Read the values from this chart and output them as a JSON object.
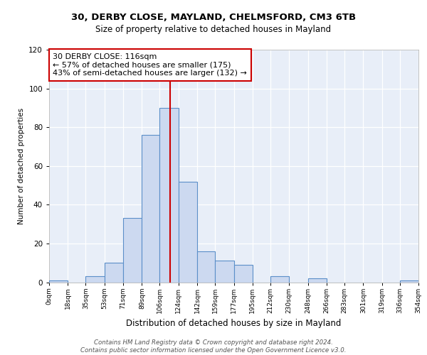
{
  "title1": "30, DERBY CLOSE, MAYLAND, CHELMSFORD, CM3 6TB",
  "title2": "Size of property relative to detached houses in Mayland",
  "xlabel": "Distribution of detached houses by size in Mayland",
  "ylabel": "Number of detached properties",
  "bin_labels": [
    "0sqm",
    "18sqm",
    "35sqm",
    "53sqm",
    "71sqm",
    "89sqm",
    "106sqm",
    "124sqm",
    "142sqm",
    "159sqm",
    "177sqm",
    "195sqm",
    "212sqm",
    "230sqm",
    "248sqm",
    "266sqm",
    "283sqm",
    "301sqm",
    "319sqm",
    "336sqm",
    "354sqm"
  ],
  "bar_heights": [
    1,
    0,
    3,
    10,
    33,
    76,
    90,
    52,
    16,
    11,
    9,
    0,
    3,
    0,
    2,
    0,
    0,
    0,
    0,
    1
  ],
  "bar_color": "#ccd9f0",
  "bar_edge_color": "#5b8fc9",
  "vline_x": 116,
  "vline_color": "#cc0000",
  "annotation_line1": "30 DERBY CLOSE: 116sqm",
  "annotation_line2": "← 57% of detached houses are smaller (175)",
  "annotation_line3": "43% of semi-detached houses are larger (132) →",
  "ylim": [
    0,
    120
  ],
  "yticks": [
    0,
    20,
    40,
    60,
    80,
    100,
    120
  ],
  "footnote": "Contains HM Land Registry data © Crown copyright and database right 2024.\nContains public sector information licensed under the Open Government Licence v3.0.",
  "bin_edges": [
    0,
    18,
    35,
    53,
    71,
    89,
    106,
    124,
    142,
    159,
    177,
    195,
    212,
    230,
    248,
    266,
    283,
    301,
    319,
    336,
    354
  ],
  "background_color": "#e8eef8"
}
